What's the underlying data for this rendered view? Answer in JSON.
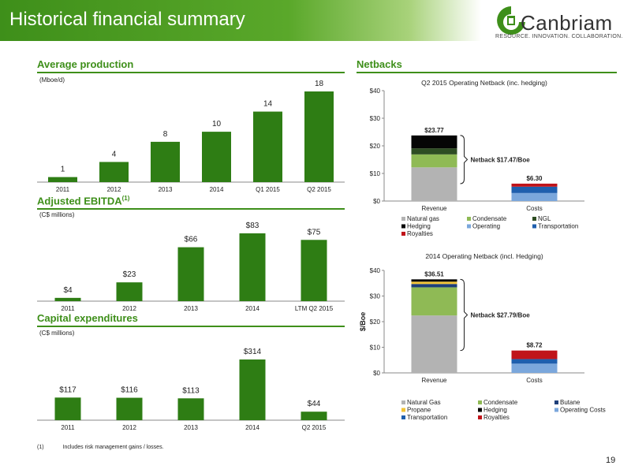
{
  "header": {
    "title": "Historical financial summary"
  },
  "logo": {
    "name": "Canbriam",
    "tagline": "RESOURCE. INNOVATION. COLLABORATION."
  },
  "sections": {
    "production_title": "Average production",
    "ebitda_title": "Adjusted EBITDA",
    "ebitda_sup": "(1)",
    "capex_title": "Capital expenditures",
    "netbacks_title": "Netbacks"
  },
  "colors": {
    "accent": "#3e8f1a",
    "bar_green": "#2e7d14"
  },
  "footnote": {
    "marker": "(1)",
    "text": "Includes risk management gains / losses."
  },
  "page_number": "19",
  "chart_data": [
    {
      "id": "production",
      "type": "bar",
      "unit_label": "(Mboe/d)",
      "categories": [
        "2011",
        "2012",
        "2013",
        "2014",
        "Q1 2015",
        "Q2 2015"
      ],
      "values": [
        1,
        4,
        8,
        10,
        14,
        18
      ],
      "value_labels": [
        "1",
        "4",
        "8",
        "10",
        "14",
        "18"
      ],
      "ylim": [
        0,
        18
      ]
    },
    {
      "id": "ebitda",
      "type": "bar",
      "unit_label": "(C$ millions)",
      "categories": [
        "2011",
        "2012",
        "2013",
        "2014",
        "LTM Q2 2015"
      ],
      "values": [
        4,
        23,
        66,
        83,
        75
      ],
      "value_labels": [
        "$4",
        "$23",
        "$66",
        "$83",
        "$75"
      ],
      "ylim": [
        0,
        83
      ]
    },
    {
      "id": "capex",
      "type": "bar",
      "unit_label": "(C$ millions)",
      "categories": [
        "2011",
        "2012",
        "2013",
        "2014",
        "Q2 2015"
      ],
      "values": [
        117,
        116,
        113,
        314,
        44
      ],
      "value_labels": [
        "$117",
        "$116",
        "$113",
        "$314",
        "$44"
      ],
      "ylim": [
        0,
        314
      ]
    },
    {
      "id": "netback_q2",
      "type": "bar",
      "stacked": true,
      "title": "Q2 2015 Operating Netback (inc. hedging)",
      "categories": [
        "Revenue",
        "Costs"
      ],
      "ylim": [
        0,
        40
      ],
      "yticks": [
        "$0",
        "$10",
        "$20",
        "$30",
        "$40"
      ],
      "tick_values": [
        0,
        10,
        20,
        30,
        40
      ],
      "totals": [
        "$23.77",
        "$6.30"
      ],
      "total_values": [
        23.77,
        6.3
      ],
      "annotation": "Netback $17.47/Boe",
      "series": [
        {
          "name": "Natural gas",
          "color": "#b3b3b3",
          "values": [
            12.2,
            0
          ]
        },
        {
          "name": "Condensate",
          "color": "#8fba55",
          "values": [
            4.7,
            0
          ]
        },
        {
          "name": "NGL",
          "color": "#2e4d23",
          "values": [
            2.2,
            0
          ]
        },
        {
          "name": "Hedging",
          "color": "#050505",
          "values": [
            4.67,
            0
          ]
        },
        {
          "name": "Operating",
          "color": "#7ba7dc",
          "values": [
            0,
            2.9
          ]
        },
        {
          "name": "Transportation",
          "color": "#1f5fae",
          "values": [
            0,
            2.3
          ]
        },
        {
          "name": "Royalties",
          "color": "#c0141a",
          "values": [
            0,
            1.1
          ]
        }
      ],
      "legend": [
        "Natural gas",
        "Condensate",
        "NGL",
        "Hedging",
        "Operating",
        "Transportation",
        "Royalties"
      ]
    },
    {
      "id": "netback_2014",
      "type": "bar",
      "stacked": true,
      "title": "2014 Operating Netback (incl. Hedging)",
      "ylabel": "$/Boe",
      "categories": [
        "Revenue",
        "Costs"
      ],
      "ylim": [
        0,
        40
      ],
      "yticks": [
        "$0",
        "$10",
        "$20",
        "$30",
        "$40"
      ],
      "tick_values": [
        0,
        10,
        20,
        30,
        40
      ],
      "totals": [
        "$36.51",
        "$8.72"
      ],
      "total_values": [
        36.51,
        8.72
      ],
      "annotation": "Netback $27.79/Boe",
      "series": [
        {
          "name": "Natural Gas",
          "color": "#b3b3b3",
          "values": [
            22.4,
            0
          ]
        },
        {
          "name": "Condensate",
          "color": "#8fba55",
          "values": [
            11.0,
            0
          ]
        },
        {
          "name": "Butane",
          "color": "#1f3f7a",
          "values": [
            1.3,
            0
          ]
        },
        {
          "name": "Propane",
          "color": "#f2c335",
          "values": [
            0.9,
            0
          ]
        },
        {
          "name": "Hedging",
          "color": "#050505",
          "values": [
            0.91,
            0
          ]
        },
        {
          "name": "Operating Costs",
          "color": "#7ba7dc",
          "values": [
            0,
            3.6
          ]
        },
        {
          "name": "Transportation",
          "color": "#1f5fae",
          "values": [
            0,
            1.8
          ]
        },
        {
          "name": "Royalties",
          "color": "#c0141a",
          "values": [
            0,
            3.32
          ]
        }
      ],
      "legend": [
        "Natural Gas",
        "Condensate",
        "Butane",
        "Propane",
        "Hedging",
        "Operating Costs",
        "Transportation",
        "Royalties"
      ]
    }
  ]
}
